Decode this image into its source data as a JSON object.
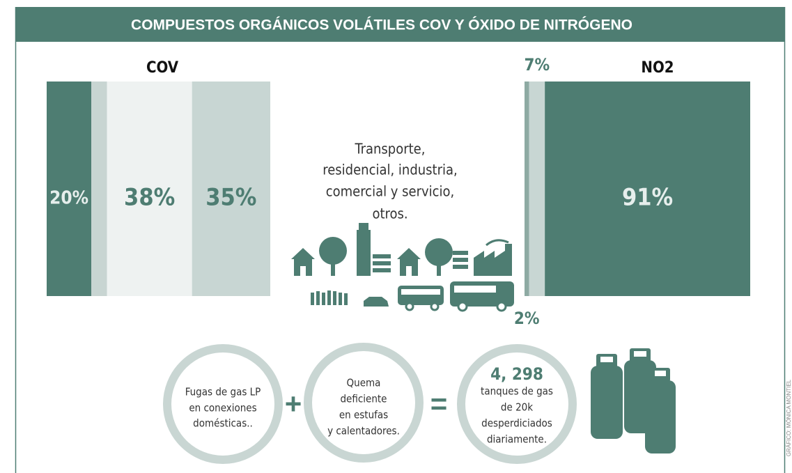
{
  "header": {
    "title": "COMPUESTOS ORGÁNICOS VOLÁTILES COV Y ÓXIDO DE NITRÓGENO"
  },
  "chart_data": [
    {
      "type": "stacked-bar",
      "title": "COV",
      "xlim": [
        0,
        100
      ],
      "values": [
        20,
        7,
        38,
        35
      ],
      "value_labels": [
        "20%",
        null,
        "38%",
        "35%"
      ],
      "colors": [
        "#4e7d72",
        "#c8d5d2",
        "#eef2f1",
        "#c8d6d3"
      ],
      "label_colors": [
        "#e6eeec",
        null,
        "#4e7d72",
        "#4e7d72"
      ]
    },
    {
      "type": "stacked-bar",
      "title": "NO2",
      "xlim": [
        0,
        100
      ],
      "values": [
        2,
        7,
        91
      ],
      "value_labels": [
        "2%",
        "7%",
        "91%"
      ],
      "colors": [
        "#8eaaa3",
        "#c8d6d3",
        "#4e7d72"
      ],
      "label_colors": [
        "#4e7d72",
        "#4e7d72",
        "#e6eeec"
      ]
    }
  ],
  "sources": {
    "lines": [
      "Transporte,",
      "residencial, industria,",
      "comercial y servicio,",
      "otros."
    ]
  },
  "equation": {
    "term1": [
      "Fugas de gas LP",
      "en conexiones",
      "domésticas.."
    ],
    "plus": "+",
    "term2": [
      "Quema",
      "deficiente",
      "en estufas",
      "y calentadores."
    ],
    "equals": "=",
    "result_number": "4, 298",
    "result": [
      "tanques de gas",
      "de 20k",
      "desperdiciados",
      "diariamente."
    ]
  },
  "credit": "GRÁFICO: MÓNICA MONTIEL"
}
